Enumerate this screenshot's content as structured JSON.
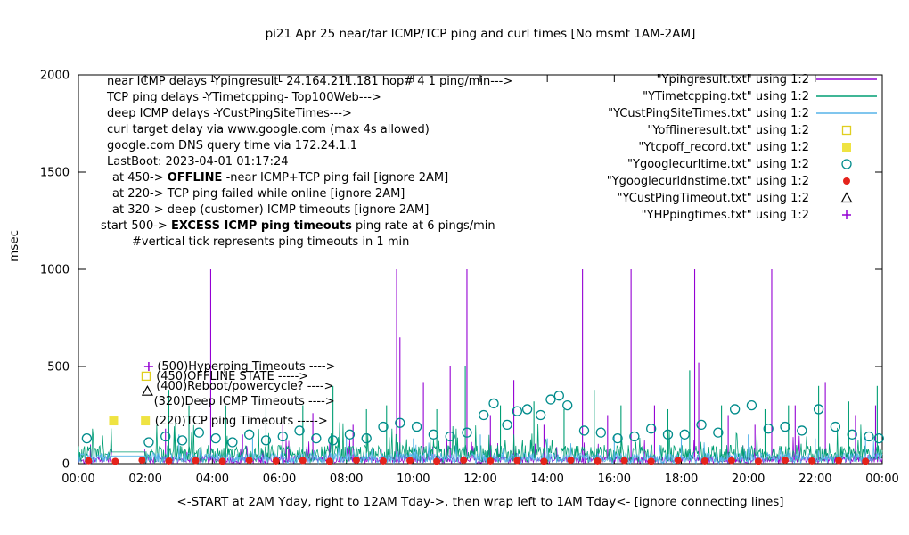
{
  "chart_data": {
    "type": "line",
    "title": "pi21 Apr 25  near/far ICMP/TCP ping and curl times [No msmt 1AM-2AM]",
    "xlabel": "<-START at 2AM Yday, right to 12AM Tday->, then wrap left to 1AM Tday<- [ignore connecting lines]",
    "ylabel": "msec",
    "xlim_hours": [
      0,
      24
    ],
    "ylim": [
      0,
      2000
    ],
    "yticks": [
      0,
      500,
      1000,
      1500,
      2000
    ],
    "xtick_labels": [
      "00:00",
      "02:00",
      "04:00",
      "06:00",
      "08:00",
      "10:00",
      "12:00",
      "14:00",
      "16:00",
      "18:00",
      "20:00",
      "22:00",
      "00:00"
    ],
    "grid": false,
    "legend_position": "top-right",
    "legend": [
      {
        "label": "\"Ypingresult.txt\" using 1:2",
        "style": "line",
        "color": "#9400D3"
      },
      {
        "label": "\"YTimetcpping.txt\" using 1:2",
        "style": "line",
        "color": "#009E73"
      },
      {
        "label": "\"YCustPingSiteTimes.txt\" using 1:2",
        "style": "line",
        "color": "#56B4E9"
      },
      {
        "label": "\"Yofflineresult.txt\" using 1:2",
        "style": "open-square",
        "color": "#E0CE1F"
      },
      {
        "label": "\"Ytcpoff_record.txt\" using 1:2",
        "style": "filled-square",
        "color": "#EFE342"
      },
      {
        "label": "\"Ygooglecurltime.txt\" using 1:2",
        "style": "open-circle",
        "color": "#008B8B"
      },
      {
        "label": "\"Ygooglecurldnstime.txt\" using 1:2",
        "style": "filled-circle",
        "color": "#E4231C"
      },
      {
        "label": "\"YCustPingTimeout.txt\" using 1:2",
        "style": "open-triangle",
        "color": "#000000"
      },
      {
        "label": "\"YHPpingtimes.txt\" using 1:2",
        "style": "plus",
        "color": "#9400D3"
      }
    ],
    "annotations_topleft": [
      {
        "indent": 120,
        "segments": [
          [
            "near ICMP delays -Ypingresult- 24.164.211.181 hop# 4 1 ping/min--->",
            0
          ]
        ]
      },
      {
        "indent": 120,
        "segments": [
          [
            "TCP ping delays -YTimetcpping- Top100Web--->",
            0
          ]
        ]
      },
      {
        "indent": 120,
        "segments": [
          [
            "deep ICMP delays -YCustPingSiteTimes--->",
            0
          ]
        ]
      },
      {
        "indent": 120,
        "segments": [
          [
            "curl target delay via www.google.com (max 4s allowed)",
            0
          ]
        ]
      },
      {
        "indent": 120,
        "segments": [
          [
            "google.com DNS query time via 172.24.1.1",
            0
          ]
        ]
      },
      {
        "indent": 120,
        "segments": [
          [
            "LastBoot: 2023-04-01 01:17:24",
            0
          ]
        ]
      },
      {
        "indent": 126,
        "segments": [
          [
            "at 450->  ",
            0
          ],
          [
            "OFFLINE",
            1
          ],
          [
            " -near ICMP+TCP ping fail [ignore 2AM]",
            0
          ]
        ]
      },
      {
        "indent": 126,
        "segments": [
          [
            "at 220-> TCP ping failed while online [ignore 2AM]",
            0
          ]
        ]
      },
      {
        "indent": 126,
        "segments": [
          [
            "at 320-> deep (customer) ICMP timeouts [ignore 2AM]",
            0
          ]
        ]
      },
      {
        "indent": 113,
        "segments": [
          [
            "start 500-> ",
            0
          ],
          [
            "EXCESS ICMP ping timeouts",
            1
          ],
          [
            " ping rate at 6 pings/min",
            0
          ]
        ]
      },
      {
        "indent": 148,
        "segments": [
          [
            "#vertical tick represents ping timeouts in 1 min",
            0
          ]
        ]
      }
    ],
    "inline_labels": [
      {
        "x": 2.35,
        "y": 500,
        "text": "(500)Hyperping Timeouts ---->"
      },
      {
        "x": 2.32,
        "y": 450,
        "text": "(450)OFFLINE STATE ----->"
      },
      {
        "x": 2.32,
        "y": 400,
        "text": "(400)Reboot/powercycle? ---->"
      },
      {
        "x": 2.25,
        "y": 320,
        "text": "(320)Deep ICMP Timeouts ---->"
      },
      {
        "x": 2.28,
        "y": 220,
        "text": "(220)TCP ping Timeouts ----->"
      }
    ],
    "inline_markers": [
      {
        "style": "plus",
        "color": "#9400D3",
        "x": 2.1,
        "y": 500
      },
      {
        "style": "open-square",
        "color": "#E0CE1F",
        "x": 2.02,
        "y": 450
      },
      {
        "style": "open-triangle",
        "color": "#000000",
        "x": 2.06,
        "y": 373
      },
      {
        "style": "filled-square",
        "color": "#EFE342",
        "x": 2.0,
        "y": 220
      }
    ],
    "series": [
      {
        "id": "ping",
        "file": "Ypingresult.txt",
        "color": "#9400D3",
        "style": "line",
        "baseline": [
          2,
          40
        ],
        "noise_spike_prob": 0.05,
        "noise_spike_extra": 120,
        "gap_value": 75,
        "spikes": [
          [
            2.6,
            180
          ],
          [
            3.95,
            1000
          ],
          [
            4.9,
            150
          ],
          [
            6.1,
            200
          ],
          [
            7.0,
            260
          ],
          [
            8.2,
            200
          ],
          [
            9.5,
            1000
          ],
          [
            9.6,
            650
          ],
          [
            10.3,
            420
          ],
          [
            11.1,
            500
          ],
          [
            11.6,
            1000
          ],
          [
            12.3,
            250
          ],
          [
            13.0,
            430
          ],
          [
            13.9,
            200
          ],
          [
            15.05,
            1000
          ],
          [
            15.8,
            250
          ],
          [
            16.5,
            1000
          ],
          [
            17.2,
            300
          ],
          [
            18.4,
            1000
          ],
          [
            18.52,
            520
          ],
          [
            19.4,
            250
          ],
          [
            20.2,
            200
          ],
          [
            20.7,
            1000
          ],
          [
            21.4,
            300
          ],
          [
            22.3,
            420
          ],
          [
            23.2,
            250
          ],
          [
            23.8,
            300
          ]
        ]
      },
      {
        "id": "tcp",
        "file": "YTimetcpping.txt",
        "color": "#009E73",
        "style": "line",
        "baseline": [
          5,
          95
        ],
        "noise_spike_prob": 0.08,
        "noise_spike_extra": 150,
        "gap_value": 60,
        "spikes": [
          [
            2.7,
            380
          ],
          [
            3.3,
            300
          ],
          [
            4.4,
            300
          ],
          [
            5.6,
            320
          ],
          [
            6.7,
            300
          ],
          [
            7.6,
            400
          ],
          [
            8.6,
            280
          ],
          [
            9.2,
            300
          ],
          [
            10.7,
            280
          ],
          [
            11.55,
            500
          ],
          [
            12.6,
            300
          ],
          [
            13.6,
            320
          ],
          [
            14.5,
            280
          ],
          [
            15.4,
            380
          ],
          [
            16.2,
            300
          ],
          [
            17.6,
            280
          ],
          [
            18.25,
            480
          ],
          [
            19.2,
            300
          ],
          [
            20.5,
            280
          ],
          [
            21.2,
            300
          ],
          [
            22.1,
            400
          ],
          [
            23.0,
            320
          ],
          [
            23.85,
            400
          ]
        ]
      },
      {
        "id": "deep",
        "file": "YCustPingSiteTimes.txt",
        "color": "#56B4E9",
        "style": "line",
        "baseline": [
          1,
          55
        ],
        "noise_spike_prob": 0.04,
        "noise_spike_extra": 70,
        "gap_value": 40,
        "spikes": [
          [
            3.0,
            150
          ],
          [
            5.2,
            130
          ],
          [
            8.0,
            140
          ],
          [
            10.0,
            130
          ],
          [
            12.0,
            150
          ],
          [
            14.0,
            130
          ],
          [
            16.0,
            140
          ],
          [
            18.0,
            130
          ],
          [
            20.0,
            150
          ],
          [
            22.0,
            130
          ],
          [
            23.5,
            140
          ]
        ]
      },
      {
        "id": "offline",
        "file": "Yofflineresult.txt",
        "color": "#E0CE1F",
        "style": "open-square",
        "points": []
      },
      {
        "id": "tcpoff",
        "file": "Ytcpoff_record.txt",
        "color": "#EFE342",
        "style": "filled-square",
        "points": [
          [
            1.05,
            220
          ]
        ]
      },
      {
        "id": "curl",
        "file": "Ygooglecurltime.txt",
        "color": "#008B8B",
        "style": "open-circle",
        "points": [
          [
            0.25,
            130
          ],
          [
            2.1,
            110
          ],
          [
            2.6,
            140
          ],
          [
            3.1,
            120
          ],
          [
            3.6,
            160
          ],
          [
            4.1,
            130
          ],
          [
            4.6,
            110
          ],
          [
            5.1,
            150
          ],
          [
            5.6,
            120
          ],
          [
            6.1,
            140
          ],
          [
            6.6,
            170
          ],
          [
            7.1,
            130
          ],
          [
            7.6,
            120
          ],
          [
            8.1,
            150
          ],
          [
            8.6,
            130
          ],
          [
            9.1,
            190
          ],
          [
            9.6,
            210
          ],
          [
            10.1,
            190
          ],
          [
            10.6,
            150
          ],
          [
            11.1,
            140
          ],
          [
            11.6,
            160
          ],
          [
            12.1,
            250
          ],
          [
            12.4,
            310
          ],
          [
            12.8,
            200
          ],
          [
            13.1,
            270
          ],
          [
            13.4,
            280
          ],
          [
            13.8,
            250
          ],
          [
            14.1,
            330
          ],
          [
            14.35,
            350
          ],
          [
            14.6,
            300
          ],
          [
            15.1,
            170
          ],
          [
            15.6,
            160
          ],
          [
            16.1,
            130
          ],
          [
            16.6,
            140
          ],
          [
            17.1,
            180
          ],
          [
            17.6,
            150
          ],
          [
            18.1,
            150
          ],
          [
            18.6,
            200
          ],
          [
            19.1,
            160
          ],
          [
            19.6,
            280
          ],
          [
            20.1,
            300
          ],
          [
            20.6,
            180
          ],
          [
            21.1,
            190
          ],
          [
            21.6,
            170
          ],
          [
            22.1,
            280
          ],
          [
            22.6,
            190
          ],
          [
            23.1,
            150
          ],
          [
            23.6,
            140
          ],
          [
            23.9,
            130
          ]
        ]
      },
      {
        "id": "dns",
        "file": "Ygooglecurldnstime.txt",
        "color": "#E4231C",
        "style": "filled-circle",
        "points": [
          [
            0.3,
            15
          ],
          [
            1.1,
            12
          ],
          [
            1.9,
            18
          ],
          [
            2.7,
            14
          ],
          [
            3.5,
            16
          ],
          [
            4.3,
            12
          ],
          [
            5.1,
            18
          ],
          [
            5.9,
            14
          ],
          [
            6.7,
            16
          ],
          [
            7.5,
            12
          ],
          [
            8.3,
            18
          ],
          [
            9.1,
            14
          ],
          [
            9.9,
            16
          ],
          [
            10.7,
            12
          ],
          [
            11.5,
            18
          ],
          [
            12.3,
            14
          ],
          [
            13.1,
            16
          ],
          [
            13.9,
            12
          ],
          [
            14.7,
            18
          ],
          [
            15.5,
            14
          ],
          [
            16.3,
            16
          ],
          [
            17.1,
            12
          ],
          [
            17.9,
            18
          ],
          [
            18.7,
            14
          ],
          [
            19.5,
            16
          ],
          [
            20.3,
            12
          ],
          [
            21.1,
            18
          ],
          [
            21.9,
            14
          ],
          [
            22.7,
            16
          ],
          [
            23.5,
            12
          ]
        ]
      },
      {
        "id": "custtimeout",
        "file": "YCustPingTimeout.txt",
        "color": "#000000",
        "style": "open-triangle",
        "points": []
      },
      {
        "id": "hpping",
        "file": "YHPpingtimes.txt",
        "color": "#9400D3",
        "style": "plus",
        "points": []
      }
    ]
  }
}
